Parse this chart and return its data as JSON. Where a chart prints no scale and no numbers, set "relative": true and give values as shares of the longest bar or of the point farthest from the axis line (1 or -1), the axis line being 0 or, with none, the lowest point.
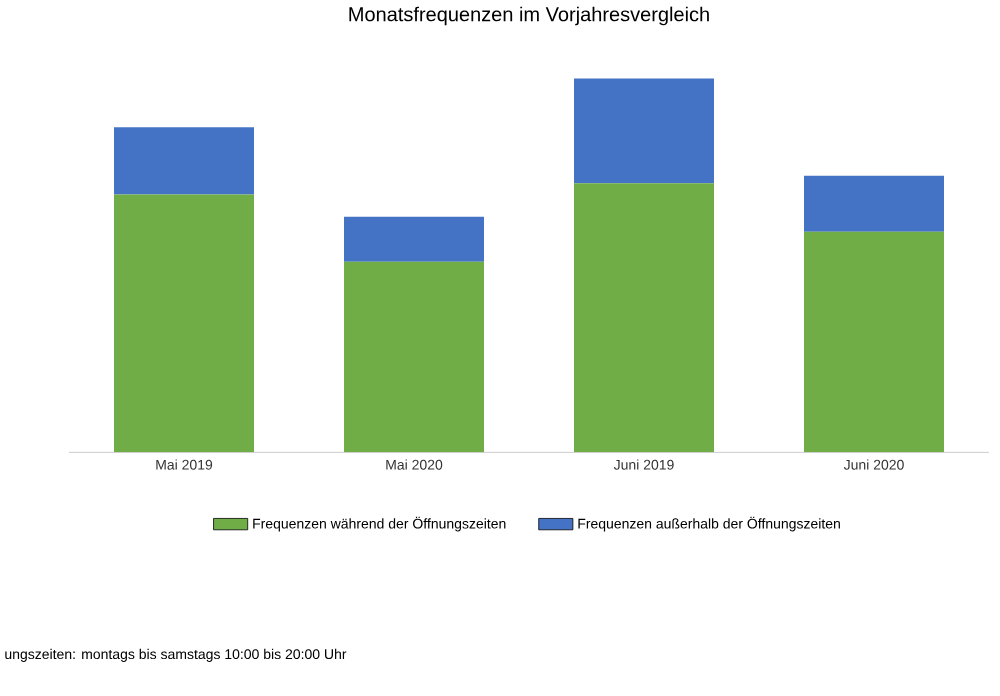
{
  "chart_data": {
    "type": "bar",
    "title": "Monatsfrequenzen im Vorjahresvergleich",
    "categories": [
      "Mai 2019",
      "Mai 2020",
      "Juni 2019",
      "Juni 2020"
    ],
    "stacked": true,
    "relative": true,
    "legend": "bottom",
    "series": [
      {
        "name": "Frequenzen während der Öffnungszeiten",
        "color": "#70ad47",
        "values": [
          0.69,
          0.51,
          0.72,
          0.59
        ]
      },
      {
        "name": "Frequenzen außerhalb der Öffnungszeiten",
        "color": "#4472c4",
        "values": [
          0.18,
          0.12,
          0.28,
          0.15
        ]
      }
    ],
    "annotations": [
      "ungszeiten:  montags bis samstags 10:00 bis 20:00 Uhr"
    ]
  }
}
